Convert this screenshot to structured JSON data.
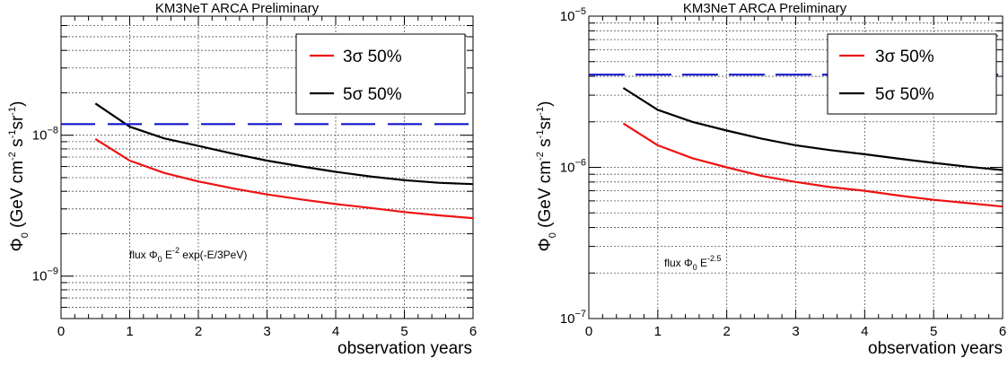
{
  "chart_data": [
    {
      "type": "line",
      "title": "KM3NeT ARCA Preliminary",
      "xlabel": "observation years",
      "ylabel": "Φ0 (GeV cm-2 s-1 sr-1)",
      "xlim": [
        0,
        6
      ],
      "ylim": [
        5e-10,
        7e-08
      ],
      "yscale": "log",
      "grid": true,
      "legend_position": "top-right",
      "annotation": "flux Φ0 E-2 exp(-E/3PeV)",
      "x_tick_labels": [
        "0",
        "1",
        "2",
        "3",
        "4",
        "5",
        "6"
      ],
      "y_tick_labels": [
        {
          "base": "10",
          "exp": "−9",
          "value": 1e-09
        },
        {
          "base": "10",
          "exp": "−8",
          "value": 1e-08
        }
      ],
      "series": [
        {
          "name": "3σ 50%",
          "color": "#ee1111",
          "x": [
            0.5,
            1,
            1.5,
            2,
            2.5,
            3,
            3.5,
            4,
            4.5,
            5,
            5.5,
            6
          ],
          "y": [
            9.4e-09,
            6.6e-09,
            5.4e-09,
            4.7e-09,
            4.2e-09,
            3.8e-09,
            3.5e-09,
            3.25e-09,
            3.05e-09,
            2.85e-09,
            2.7e-09,
            2.58e-09
          ]
        },
        {
          "name": "5σ 50%",
          "color": "#000000",
          "x": [
            0.5,
            1,
            1.5,
            2,
            2.5,
            3,
            3.5,
            4,
            4.5,
            5,
            5.5,
            6
          ],
          "y": [
            1.68e-08,
            1.15e-08,
            9.5e-09,
            8.4e-09,
            7.4e-09,
            6.6e-09,
            6e-09,
            5.5e-09,
            5.1e-09,
            4.8e-09,
            4.6e-09,
            4.5e-09
          ]
        },
        {
          "color": "#1515cc",
          "style": "dashed",
          "x": [
            0,
            6
          ],
          "y": [
            1.2e-08,
            1.2e-08
          ]
        }
      ]
    },
    {
      "type": "line",
      "title": "KM3NeT ARCA Preliminary",
      "xlabel": "observation years",
      "ylabel": "Φ0 (GeV cm-2 s-1 sr-1)",
      "xlim": [
        0,
        6
      ],
      "ylim": [
        1e-07,
        1e-05
      ],
      "yscale": "log",
      "grid": true,
      "legend_position": "top-right",
      "annotation": "flux Φ0 E-2.5",
      "x_tick_labels": [
        "0",
        "1",
        "2",
        "3",
        "4",
        "5",
        "6"
      ],
      "y_tick_labels": [
        {
          "base": "10",
          "exp": "−7",
          "value": 1e-07
        },
        {
          "base": "10",
          "exp": "−6",
          "value": 1e-06
        },
        {
          "base": "10",
          "exp": "−5",
          "value": 1e-05
        }
      ],
      "series": [
        {
          "name": "3σ 50%",
          "color": "#ee1111",
          "x": [
            0.5,
            1,
            1.5,
            2,
            2.5,
            3,
            3.5,
            4,
            4.5,
            5,
            5.5,
            6
          ],
          "y": [
            1.95e-06,
            1.4e-06,
            1.15e-06,
            1e-06,
            8.8e-07,
            8e-07,
            7.4e-07,
            7e-07,
            6.5e-07,
            6.1e-07,
            5.8e-07,
            5.5e-07
          ]
        },
        {
          "name": "5σ 50%",
          "color": "#000000",
          "x": [
            0.5,
            1,
            1.5,
            2,
            2.5,
            3,
            3.5,
            4,
            4.5,
            5,
            5.5,
            6
          ],
          "y": [
            3.35e-06,
            2.4e-06,
            2e-06,
            1.75e-06,
            1.55e-06,
            1.4e-06,
            1.3e-06,
            1.22e-06,
            1.14e-06,
            1.07e-06,
            1.01e-06,
            9.6e-07
          ]
        },
        {
          "color": "#1515cc",
          "style": "dashed",
          "x": [
            0,
            6
          ],
          "y": [
            4.1e-06,
            4.1e-06
          ]
        }
      ]
    }
  ]
}
